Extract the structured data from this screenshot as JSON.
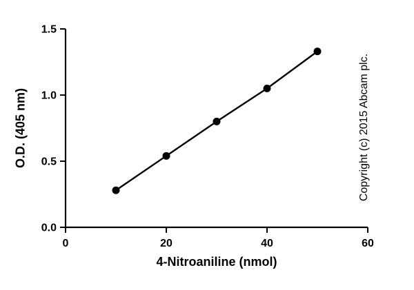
{
  "chart_data": {
    "type": "scatter",
    "title": "",
    "xlabel": "4-Nitroaniline (nmol)",
    "ylabel": "O.D. (405 nm)",
    "x": [
      10,
      20,
      30,
      40,
      50
    ],
    "y": [
      0.28,
      0.54,
      0.8,
      1.05,
      1.33
    ],
    "xlim": [
      0,
      60
    ],
    "ylim": [
      0,
      1.5
    ],
    "xticks": [
      {
        "value": 0,
        "label": "0"
      },
      {
        "value": 20,
        "label": "20"
      },
      {
        "value": 40,
        "label": "40"
      },
      {
        "value": 60,
        "label": "60"
      }
    ],
    "yticks": [
      {
        "value": 0,
        "label": "0.0"
      },
      {
        "value": 0.5,
        "label": "0.5"
      },
      {
        "value": 1.0,
        "label": "1.0"
      },
      {
        "value": 1.5,
        "label": "1.5"
      }
    ],
    "line": true,
    "grid": false,
    "legend": "none",
    "marker": "circle",
    "color": "#000000"
  },
  "annotations": {
    "copyright": "Copyright (c) 2015 Abcam plc."
  }
}
